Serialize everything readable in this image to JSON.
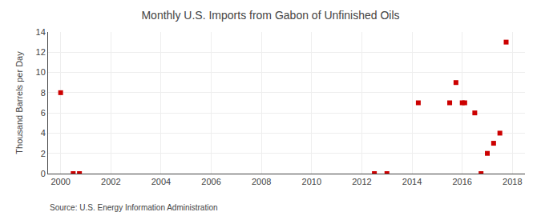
{
  "chart_data": {
    "type": "scatter",
    "title": "Monthly U.S. Imports from Gabon of Unfinished Oils",
    "ylabel": "Thousand Barrels per Day",
    "source": "Source: U.S. Energy Information Administration",
    "x": [
      2000.0,
      2000.5,
      2000.75,
      2012.5,
      2013.0,
      2014.25,
      2015.5,
      2015.75,
      2016.0,
      2016.1,
      2016.5,
      2016.75,
      2017.0,
      2017.25,
      2017.5,
      2017.75
    ],
    "values": [
      8,
      0,
      0,
      0,
      0,
      7,
      7,
      9,
      7,
      7,
      6,
      0,
      2,
      3,
      4,
      13
    ],
    "color": "#cc0000",
    "marker": "square",
    "xlim": [
      1999.5,
      2018.5
    ],
    "xticks": [
      2000,
      2002,
      2004,
      2006,
      2008,
      2010,
      2012,
      2014,
      2016,
      2018
    ],
    "ylim": [
      0,
      14
    ],
    "yticks": [
      0,
      2,
      4,
      6,
      8,
      10,
      12,
      14
    ],
    "grid": true
  }
}
